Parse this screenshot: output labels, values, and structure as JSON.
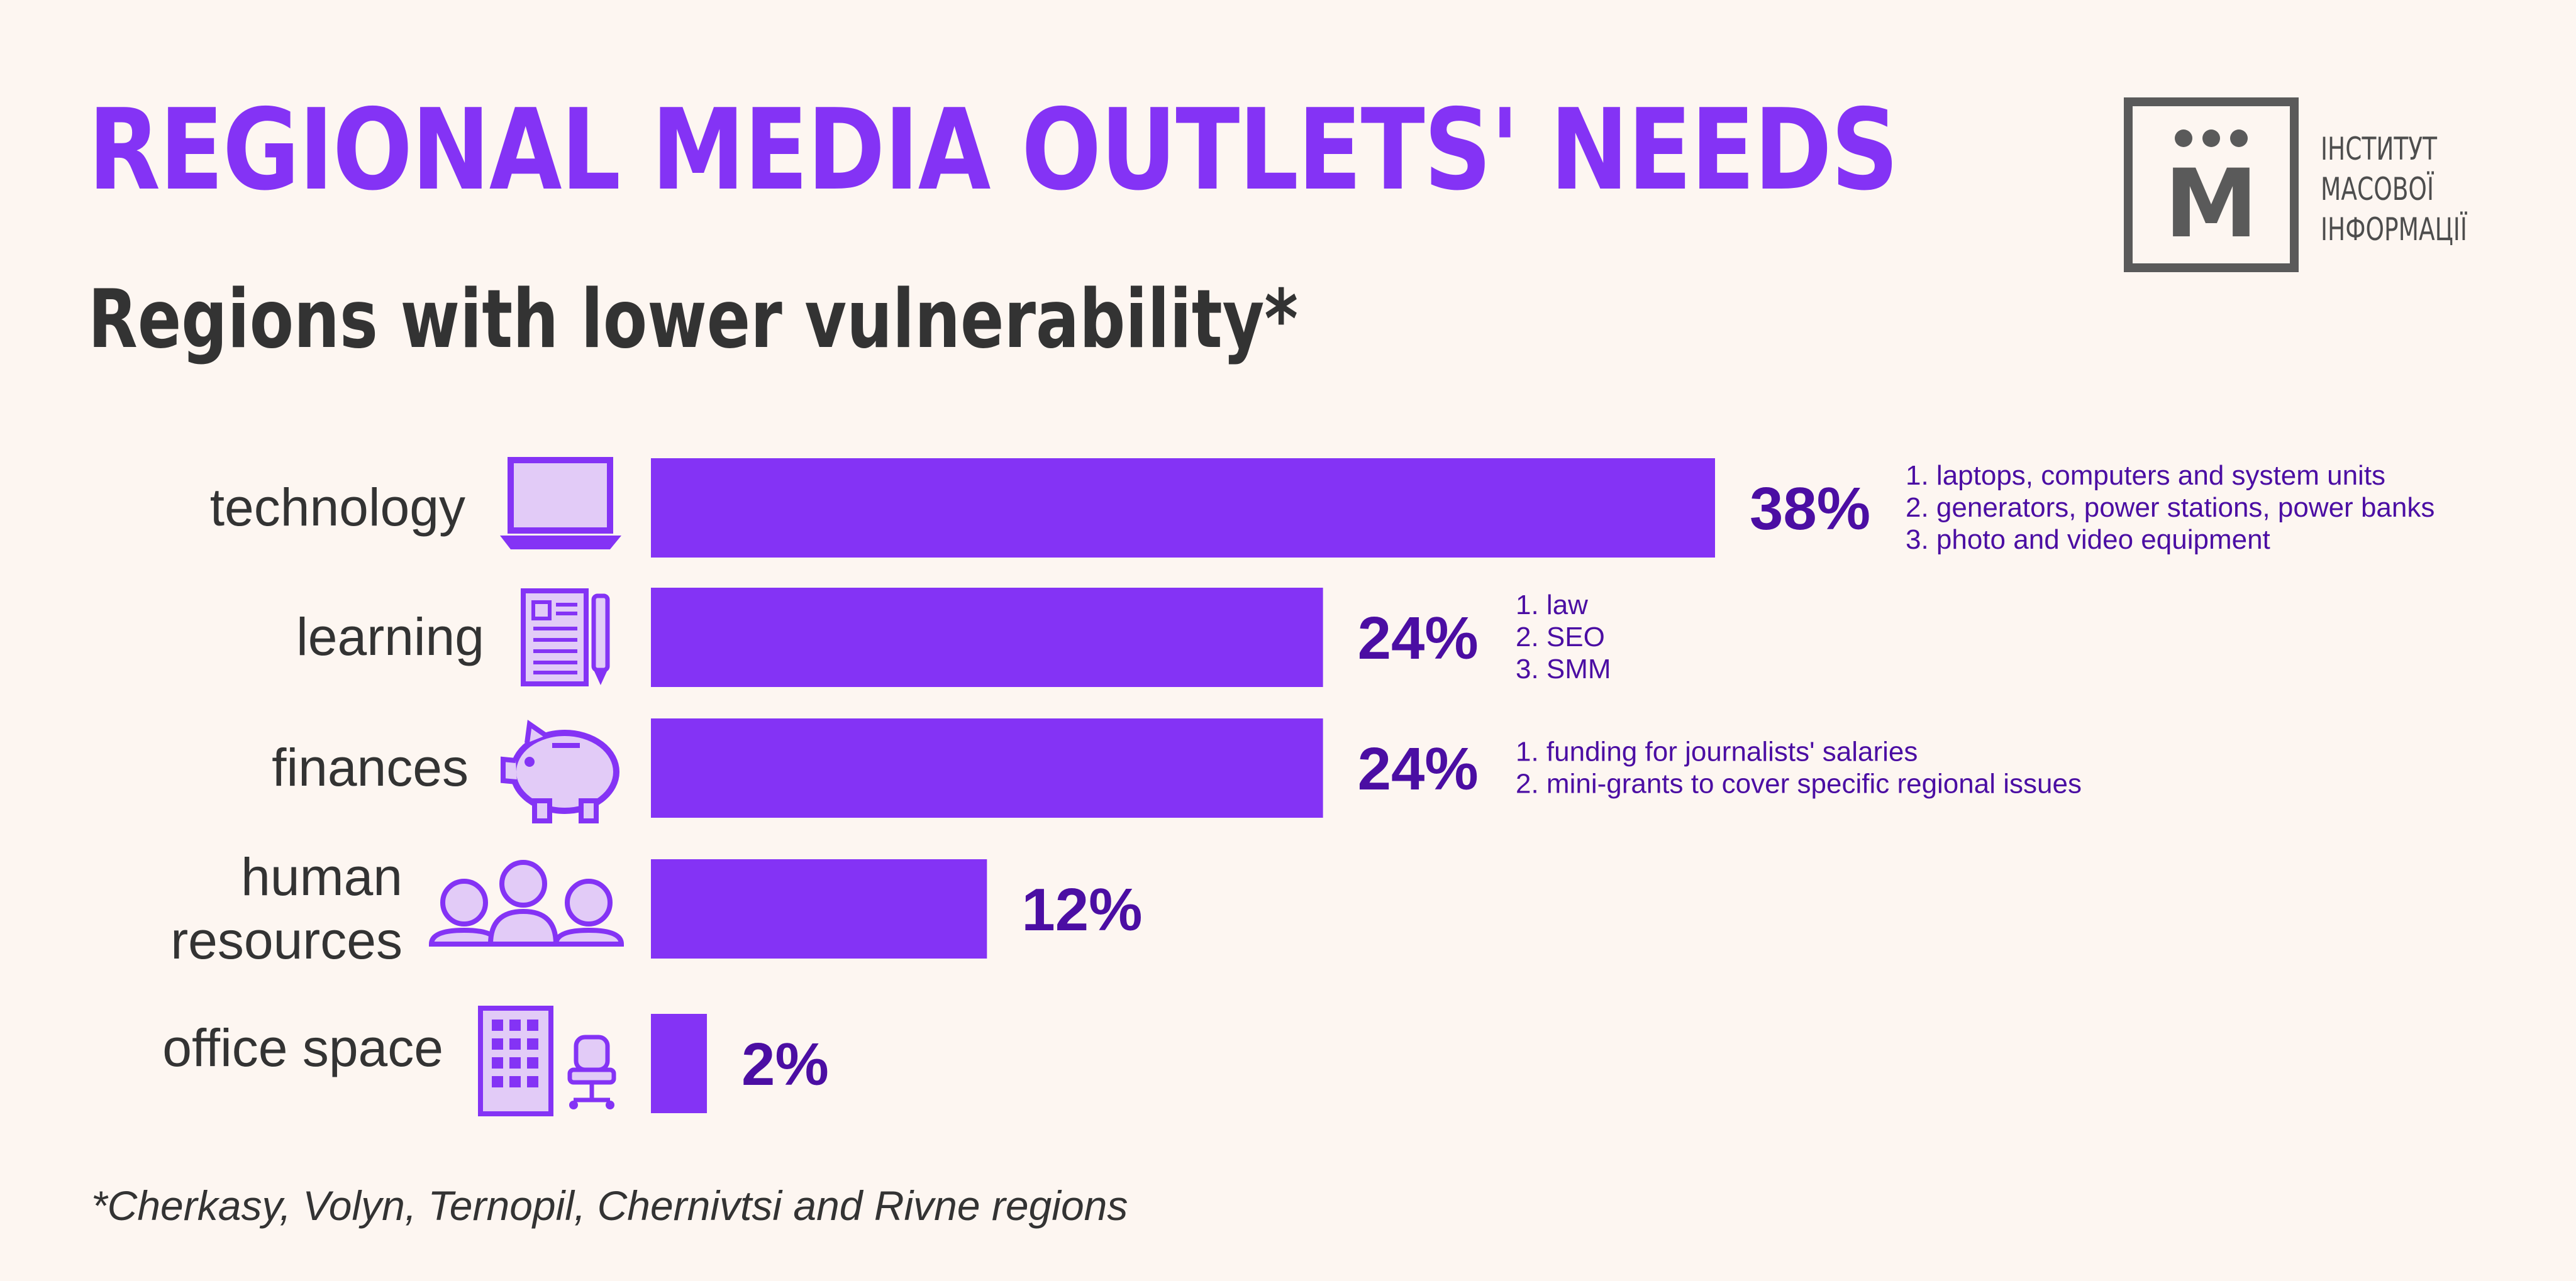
{
  "colors": {
    "background": "#fdf6f1",
    "accent": "#8433f5",
    "value_text": "#4b0ea3",
    "icon_fill": "#e2cbf7",
    "icon_stroke": "#8433f5",
    "dark_text": "#333333"
  },
  "logo": {
    "icon": "mi-logo-icon",
    "letter": "М",
    "lines": [
      "ІНСТИТУТ",
      "МАСОВОЇ",
      "ІНФОРМАЦІЇ"
    ]
  },
  "chart_data": {
    "type": "bar",
    "orientation": "horizontal",
    "title": "REGIONAL MEDIA OUTLETS' NEEDS",
    "subtitle": "Regions with lower vulnerability*",
    "categories": [
      "technology",
      "learning",
      "finances",
      "human resources",
      "office space"
    ],
    "values": [
      38,
      24,
      24,
      12,
      2
    ],
    "value_labels": [
      "38%",
      "24%",
      "24%",
      "12%",
      "2%"
    ],
    "unit": "%",
    "xlim": [
      0,
      38
    ],
    "icons": [
      "laptop-icon",
      "document-pen-icon",
      "piggy-bank-icon",
      "people-icon",
      "office-building-chair-icon"
    ],
    "annotations": [
      [
        "1. laptops, computers and system units",
        "2. generators, power stations, power banks",
        "3. photo and video equipment"
      ],
      [
        "1. law",
        "2. SEO",
        "3. SMM"
      ],
      [
        "1. funding for journalists' salaries",
        "2. mini-grants to cover specific regional issues"
      ],
      [],
      []
    ],
    "footnote": "*Cherkasy, Volyn, Ternopil, Chernivtsi and Rivne regions",
    "grid": false,
    "legend": "none"
  }
}
